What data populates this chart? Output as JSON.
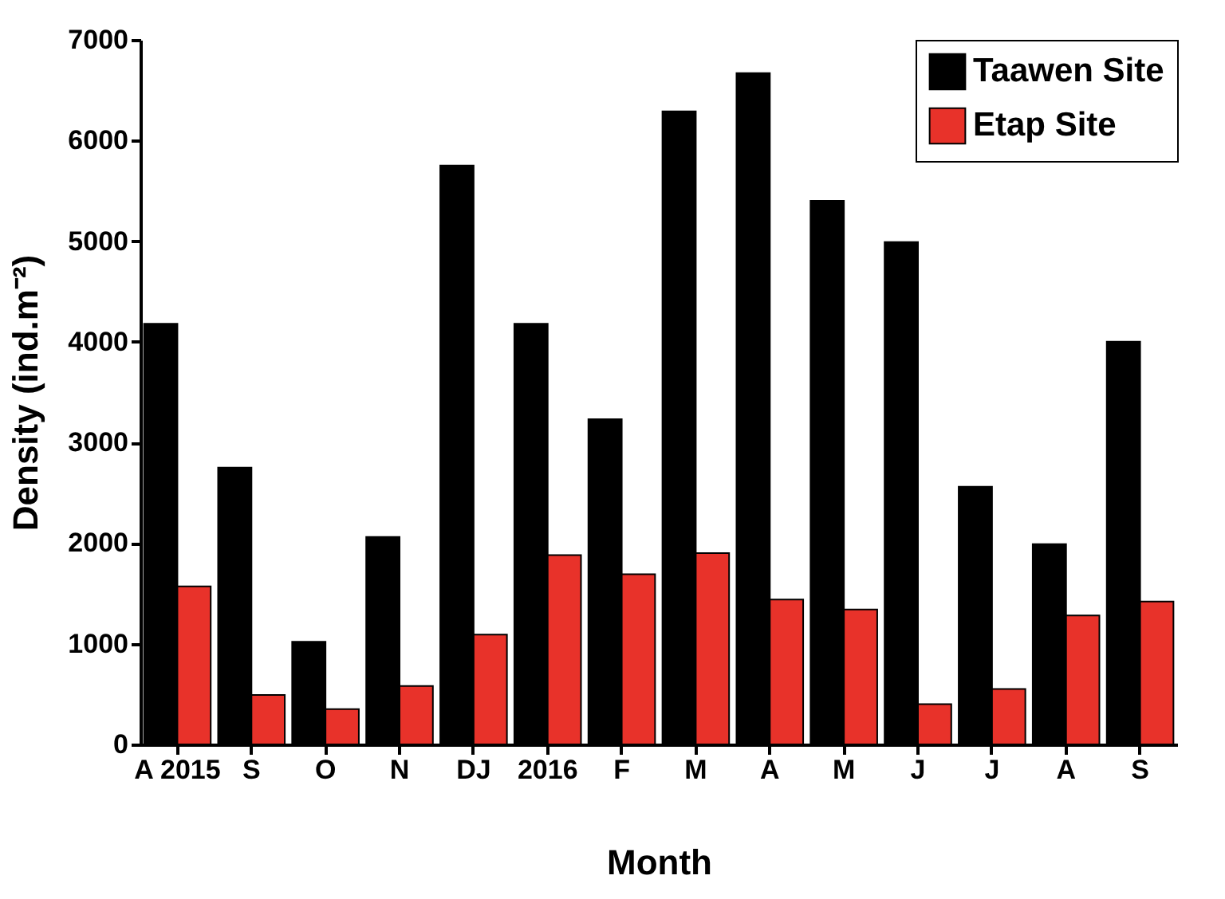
{
  "chart_data": {
    "type": "bar",
    "xlabel": "Month",
    "ylabel": "Density (ind.m⁻²)",
    "categories": [
      "A 2015",
      "S",
      "O",
      "N",
      "DJ",
      "2016",
      "F",
      "M",
      "A",
      "M",
      "J",
      "J",
      "A",
      "S"
    ],
    "series": [
      {
        "name": "Taawen Site",
        "color": "#000000",
        "values": [
          4180,
          2750,
          1020,
          2060,
          5750,
          4180,
          3230,
          6290,
          6670,
          5400,
          4990,
          2560,
          1990,
          4000
        ]
      },
      {
        "name": "Etap Site",
        "color": "#e8322a",
        "values": [
          1570,
          490,
          350,
          580,
          1090,
          1880,
          1690,
          1900,
          1440,
          1340,
          400,
          550,
          1280,
          1420
        ]
      }
    ],
    "ylim": [
      0,
      7000
    ],
    "yticks": [
      0,
      1000,
      2000,
      3000,
      4000,
      5000,
      6000,
      7000
    ],
    "grid": false,
    "legend": "top right"
  }
}
